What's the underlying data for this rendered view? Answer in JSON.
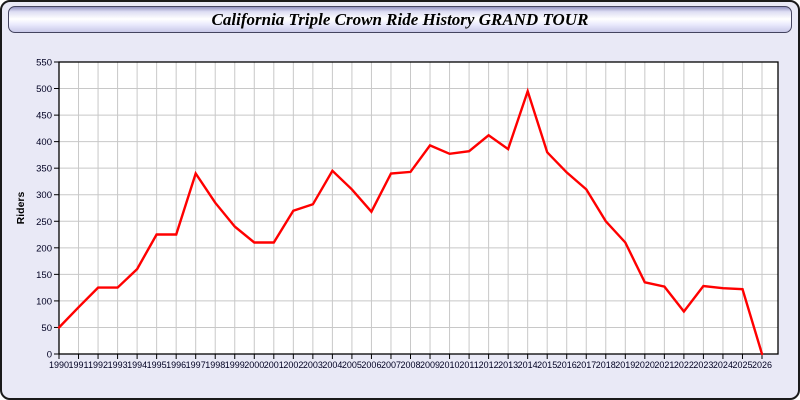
{
  "title_bar": {
    "title": "California Triple Crown Ride History GRAND TOUR"
  },
  "chart_data": {
    "type": "line",
    "title": "California Triple Crown Ride History GRAND TOUR",
    "xlabel": "",
    "ylabel": "Riders",
    "ylim": [
      0,
      550
    ],
    "ytick_step": 50,
    "grid": true,
    "legend": "none",
    "x": [
      1990,
      1991,
      1992,
      1993,
      1994,
      1995,
      1996,
      1997,
      1998,
      1999,
      2000,
      2001,
      2002,
      2003,
      2004,
      2005,
      2006,
      2007,
      2008,
      2009,
      2010,
      2011,
      2012,
      2013,
      2014,
      2015,
      2016,
      2017,
      2018,
      2019,
      2020,
      2021,
      2022,
      2023,
      2024,
      2025,
      2026
    ],
    "series": [
      {
        "name": "Riders",
        "color": "#ff0000",
        "values": [
          50,
          88,
          125,
          125,
          160,
          225,
          225,
          340,
          285,
          240,
          210,
          210,
          270,
          282,
          345,
          310,
          268,
          340,
          343,
          393,
          377,
          382,
          412,
          386,
          495,
          380,
          342,
          310,
          250,
          210,
          135,
          127,
          80,
          128,
          124,
          122,
          0
        ]
      }
    ],
    "colors": {
      "line": "#ff0000",
      "grid": "#c8c8c8",
      "plot_background": "#ffffff",
      "frame": "#000000",
      "tick_label": "#000022",
      "page_background": "#e9e9f6"
    }
  }
}
